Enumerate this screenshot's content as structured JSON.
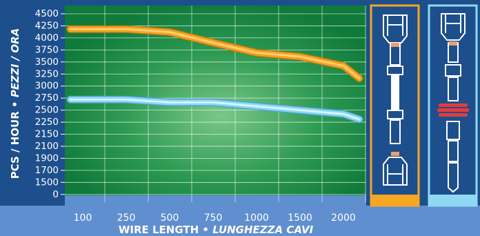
{
  "chart_data": {
    "type": "line",
    "ylabel_plain": "PCS / HOUR • ",
    "ylabel_italic": "PEZZI / ORA",
    "xlabel_plain": "WIRE LENGTH • ",
    "xlabel_italic": "LUNGHEZZA CAVI",
    "y_ticks": [
      "0",
      "1500",
      "1700",
      "1900",
      "2100",
      "2150",
      "2250",
      "2500",
      "2750",
      "3000",
      "3250",
      "3500",
      "3750",
      "4000",
      "4250",
      "4500"
    ],
    "categories": [
      "100",
      "250",
      "500",
      "750",
      "1000",
      "1500",
      "2000"
    ],
    "series": [
      {
        "color": "#f5a623",
        "x": [
          "100",
          "250",
          "500",
          "750",
          "1000",
          "1500",
          "2000"
        ],
        "values": [
          4180,
          4180,
          4120,
          3900,
          3690,
          3610,
          3420
        ]
      },
      {
        "color": "#8fd8f5",
        "x": [
          "100",
          "250",
          "500",
          "750",
          "1000",
          "1500",
          "2000"
        ],
        "values": [
          2720,
          2720,
          2660,
          2660,
          2580,
          2500,
          2420
        ]
      }
    ],
    "end_values": [
      3160,
      2310
    ],
    "grid": true
  },
  "panels": [
    {
      "name": "orange-terminal-panel",
      "color": "#f5a623"
    },
    {
      "name": "blue-terminal-panel",
      "color": "#8fd8f5"
    }
  ]
}
